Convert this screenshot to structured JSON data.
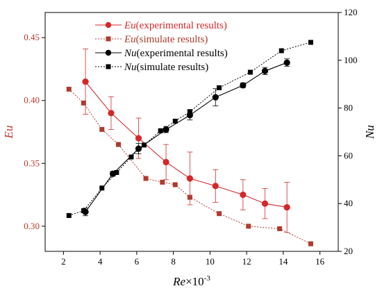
{
  "chart_data": {
    "type": "line",
    "xlabel": {
      "italic": "Re",
      "rest": "×10",
      "sup": "-3"
    },
    "ylabel_left": "Eu",
    "ylabel_right": "Nu",
    "xlim": [
      1,
      17
    ],
    "ylim_left": [
      0.28,
      0.47
    ],
    "ylim_right": [
      20,
      120
    ],
    "x_ticks": [
      2,
      4,
      6,
      8,
      10,
      12,
      14,
      16
    ],
    "y_ticks_left": [
      0.3,
      0.35,
      0.4,
      0.45
    ],
    "y_ticks_right": [
      20,
      40,
      60,
      80,
      100,
      120
    ],
    "left_color": "#c0392b",
    "right_color": "#000000",
    "legend_position": "top-center",
    "series": [
      {
        "name": "Eu(experimental results)",
        "label_italic": "Eu",
        "label_rest": "(experimental results)",
        "axis": "left",
        "color": "#d62728",
        "marker": "circle",
        "line": "solid",
        "x": [
          3.2,
          4.6,
          6.1,
          7.6,
          8.9,
          10.3,
          11.8,
          13.0,
          14.2
        ],
        "y": [
          0.415,
          0.39,
          0.37,
          0.351,
          0.338,
          0.332,
          0.325,
          0.318,
          0.315
        ],
        "err": [
          0.026,
          0.013,
          0.016,
          0.014,
          0.021,
          0.013,
          0.012,
          0.012,
          0.02
        ]
      },
      {
        "name": "Eu(simulate results)",
        "label_italic": "Eu",
        "label_rest": "(simulate results)",
        "axis": "left",
        "color": "#b03a2e",
        "marker": "square",
        "line": "dotted",
        "x": [
          2.3,
          3.1,
          4.1,
          5.0,
          6.5,
          7.4,
          8.1,
          8.9,
          10.5,
          12.1,
          13.8,
          15.5
        ],
        "y": [
          0.409,
          0.398,
          0.377,
          0.365,
          0.338,
          0.335,
          0.333,
          0.323,
          0.31,
          0.3,
          0.298,
          0.286
        ],
        "err": [
          0,
          0,
          0,
          0,
          0,
          0,
          0,
          0,
          0,
          0,
          0,
          0
        ]
      },
      {
        "name": "Nu(experimental results)",
        "label_italic": "Nu",
        "label_rest": "(experimental results)",
        "axis": "right",
        "color": "#000000",
        "marker": "circle",
        "line": "solid",
        "x": [
          3.2,
          4.7,
          6.1,
          7.6,
          8.9,
          10.3,
          11.8,
          13.0,
          14.2
        ],
        "y": [
          36.5,
          52.5,
          63.0,
          71.0,
          77.0,
          84.5,
          89.5,
          95.5,
          99.0
        ],
        "err": [
          1.6,
          1.0,
          2.2,
          1.3,
          2.0,
          3.6,
          1.0,
          1.5,
          1.6
        ]
      },
      {
        "name": "Nu(simulate results)",
        "label_italic": "Nu",
        "label_rest": "(simulate results)",
        "axis": "right",
        "color": "#000000",
        "marker": "square",
        "line": "dotted",
        "x": [
          2.3,
          3.1,
          4.1,
          4.9,
          5.7,
          6.4,
          7.3,
          8.1,
          8.9,
          10.5,
          12.2,
          13.9,
          15.5
        ],
        "y": [
          35.0,
          37.0,
          46.5,
          53.0,
          59.5,
          64.5,
          70.5,
          74.5,
          78.5,
          88.5,
          95.0,
          104.0,
          107.5
        ],
        "err": [
          0,
          0,
          0,
          0,
          0,
          0,
          0,
          0,
          0,
          0,
          0,
          0,
          0
        ]
      }
    ]
  }
}
